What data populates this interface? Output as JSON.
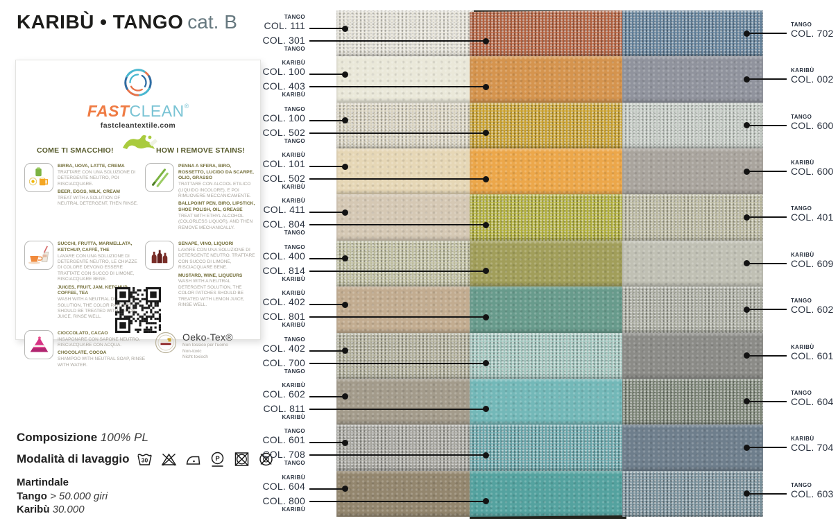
{
  "header": {
    "title_main": "KARIBÙ • TANGO",
    "title_cat": "cat. B"
  },
  "fastclean": {
    "brand_fast": "FAST",
    "brand_clean": "CLEAN",
    "brand_reg": "®",
    "website": "fastcleantextile.com",
    "header_it": "COME TI SMACCHIO!",
    "header_en": "HOW I REMOVE STAINS!",
    "stains": [
      {
        "icon": "beer-eggs-milk-icon",
        "title_it": "BIRRA, UOVA, LATTE, CREMA",
        "body_it": "TRATTARE CON UNA SOLUZIONE DI DETERGENTE NEUTRO, POI RISCIACQUARE.",
        "title_en": "BEER, EGGS, MILK, CREAM",
        "body_en": "TREAT WITH A SOLUTION OF NEUTRAL DETERGENT, THEN RINSE."
      },
      {
        "icon": "pens-icon",
        "title_it": "PENNA A SFERA, BIRO, ROSSETTO, LUCIDO DA SCARPE, OLIO, GRASSO",
        "body_it": "TRATTARE CON ALCOOL ETILICO (LIQUIDO INCOLORE), E POI RIMUOVERE MECCANICAMENTE.",
        "title_en": "BALLPOINT PEN, BIRO, LIPSTICK, SHOE POLISH, OIL, GREASE",
        "body_en": "TREAT WITH ETHYL ALCOHOL (COLORLESS LIQUOR), AND THEN REMOVE MECHANICALLY."
      },
      {
        "icon": "coffee-juice-icon",
        "title_it": "SUCCHI, FRUTTA, MARMELLATA, KETCHUP, CAFFÈ, THE",
        "body_it": "LAVARE CON UNA SOLUZIONE DI DETERGENTE NEUTRO, LE CHIAZZE DI COLORE DEVONO ESSERE TRATTATE CON SUCCO DI LIMONE, RISCIACQUARE BENE.",
        "title_en": "JUICES, FRUIT, JAM, KETCHUP, COFFEE, TEA",
        "body_en": "WASH WITH A NEUTRAL DETERGENT SOLUTION, THE COLOR PATCHES SHOULD BE TREATED WITH LEMON JUICE, RINSE WELL."
      },
      {
        "icon": "bottles-icon",
        "title_it": "SENAPE, VINO, LIQUORI",
        "body_it": "LAVARE CON UNA SOLUZIONE DI DETERGENTE NEUTRO. TRATTARE CON SUCCO DI LIMONE, RISCIACQUARE BENE.",
        "title_en": "MUSTARD, WINE, LIQUEURS",
        "body_en": "WASH WITH A NEUTRAL DETERGENT SOLUTION, THE COLOR PATCHES SHOULD BE TREATED WITH LEMON JUICE, RINSE WELL."
      },
      {
        "icon": "cake-icon",
        "title_it": "CIOCCOLATO, CACAO",
        "body_it": "INSAPONARE CON SAPONE NEUTRO, RISCIACQUARE CON ACQUA.",
        "title_en": "CHOCOLATE, COCOA",
        "body_en": "SHAMPOO WITH NEUTRAL SOAP, RINSE WITH WATER."
      }
    ],
    "oekotex": {
      "name": "Oeko-Tex®",
      "lines": [
        "Non tossico per l'uomo",
        "Non-toxic",
        "Nicht toxisch"
      ]
    }
  },
  "info": {
    "composition_label": "Composizione",
    "composition_value": "100% PL",
    "washing_label": "Modalità di lavaggio",
    "care_symbols": [
      "wash-30",
      "do-not-bleach",
      "iron-low",
      "dry-clean-P",
      "do-not-tumble-dry",
      "do-not-dry-clean"
    ],
    "martindale_label": "Martindale",
    "martindale_rows": [
      {
        "name": "Tango",
        "value": "> 50.000 giri"
      },
      {
        "name": "Karibù",
        "value": "30.000"
      }
    ]
  },
  "colors": {
    "line": "#131313",
    "label_text": "#2b3340",
    "backing": "#24241d"
  },
  "swatches": {
    "rows": [
      {
        "left_top": {
          "brand": "TANGO",
          "col": "COL. 111"
        },
        "left_bottom": {
          "col": "COL. 301",
          "brand": "TANGO"
        },
        "right": {
          "brand": "TANGO",
          "col": "COL. 702"
        },
        "cells": [
          {
            "texture": "woven",
            "color": "#e8e5da"
          },
          {
            "texture": "woven",
            "color": "#b4603d"
          },
          {
            "texture": "woven",
            "color": "#61809a"
          }
        ]
      },
      {
        "left_top": {
          "brand": "KARIBÙ",
          "col": "COL. 100"
        },
        "left_bottom": {
          "col": "COL. 403",
          "brand": "KARIBÙ"
        },
        "right": {
          "brand": "KARIBÙ",
          "col": "COL. 002"
        },
        "cells": [
          {
            "texture": "leather",
            "color": "#eae8d9"
          },
          {
            "texture": "leather",
            "color": "#d5944e"
          },
          {
            "texture": "leather",
            "color": "#90939d"
          }
        ]
      },
      {
        "left_top": {
          "brand": "TANGO",
          "col": "COL. 100"
        },
        "left_bottom": {
          "col": "COL. 502",
          "brand": "TANGO"
        },
        "right": {
          "brand": "TANGO",
          "col": "COL. 600"
        },
        "cells": [
          {
            "texture": "woven",
            "color": "#ddd7c4"
          },
          {
            "texture": "woven",
            "color": "#cba22d"
          },
          {
            "texture": "woven",
            "color": "#c6cdc6"
          }
        ]
      },
      {
        "left_top": {
          "brand": "KARIBÙ",
          "col": "COL. 101"
        },
        "left_bottom": {
          "col": "COL. 502",
          "brand": "KARIBÙ"
        },
        "right": {
          "brand": "KARIBÙ",
          "col": "COL. 600"
        },
        "cells": [
          {
            "texture": "leather",
            "color": "#e6d7b6"
          },
          {
            "texture": "leather",
            "color": "#eca74a"
          },
          {
            "texture": "leather",
            "color": "#a9a49d"
          }
        ]
      },
      {
        "left_top": {
          "brand": "KARIBÙ",
          "col": "COL. 411"
        },
        "left_bottom": {
          "col": "COL. 804",
          "brand": "TANGO"
        },
        "right": {
          "brand": "TANGO",
          "col": "COL. 401"
        },
        "cells": [
          {
            "texture": "leather",
            "color": "#d5c8b4"
          },
          {
            "texture": "woven",
            "color": "#b2b03a"
          },
          {
            "texture": "woven",
            "color": "#bcbaa1"
          }
        ]
      },
      {
        "left_top": {
          "brand": "TANGO",
          "col": "COL. 400"
        },
        "left_bottom": {
          "col": "COL. 814",
          "brand": "KARIBÙ"
        },
        "right": {
          "brand": "KARIBÙ",
          "col": "COL. 609"
        },
        "cells": [
          {
            "texture": "woven",
            "color": "#c2c1a2"
          },
          {
            "texture": "leather",
            "color": "#a19e5a"
          },
          {
            "texture": "leather",
            "color": "#c0c0b4"
          }
        ]
      },
      {
        "left_top": {
          "brand": "KARIBÙ",
          "col": "COL. 402"
        },
        "left_bottom": {
          "col": "COL. 801",
          "brand": "KARIBÙ"
        },
        "right": {
          "brand": "TANGO",
          "col": "COL. 602"
        },
        "cells": [
          {
            "texture": "leather",
            "color": "#c2ac90"
          },
          {
            "texture": "leather",
            "color": "#689b8c"
          },
          {
            "texture": "woven",
            "color": "#adafa3"
          }
        ]
      },
      {
        "left_top": {
          "brand": "TANGO",
          "col": "COL. 402"
        },
        "left_bottom": {
          "col": "COL. 700",
          "brand": "TANGO"
        },
        "right": {
          "brand": "KARIBÙ",
          "col": "COL. 601"
        },
        "cells": [
          {
            "texture": "woven",
            "color": "#b2b09b"
          },
          {
            "texture": "woven",
            "color": "#a3c8c0"
          },
          {
            "texture": "leather",
            "color": "#8b8b87"
          }
        ]
      },
      {
        "left_top": {
          "brand": "KARIBÙ",
          "col": "COL. 602"
        },
        "left_bottom": {
          "col": "COL. 811",
          "brand": "KARIBÙ"
        },
        "right": {
          "brand": "TANGO",
          "col": "COL. 604"
        },
        "cells": [
          {
            "texture": "leather",
            "color": "#a39b8b"
          },
          {
            "texture": "leather",
            "color": "#73b8b8"
          },
          {
            "texture": "woven",
            "color": "#7d8677"
          }
        ]
      },
      {
        "left_top": {
          "brand": "TANGO",
          "col": "COL. 601"
        },
        "left_bottom": {
          "col": "COL. 708",
          "brand": "TANGO"
        },
        "right": {
          "brand": "KARIBÙ",
          "col": "COL. 704"
        },
        "cells": [
          {
            "texture": "woven",
            "color": "#a8a7a0"
          },
          {
            "texture": "woven",
            "color": "#68a6ab"
          },
          {
            "texture": "leather",
            "color": "#6e7e8c"
          }
        ]
      },
      {
        "left_top": {
          "brand": "KARIBÙ",
          "col": "COL. 604"
        },
        "left_bottom": {
          "col": "COL. 800",
          "brand": "KARIBÙ"
        },
        "right": {
          "brand": "TANGO",
          "col": "COL. 603"
        },
        "cells": [
          {
            "texture": "leather",
            "color": "#93866e"
          },
          {
            "texture": "leather",
            "color": "#54a29f"
          },
          {
            "texture": "woven",
            "color": "#78909b"
          }
        ]
      }
    ]
  }
}
